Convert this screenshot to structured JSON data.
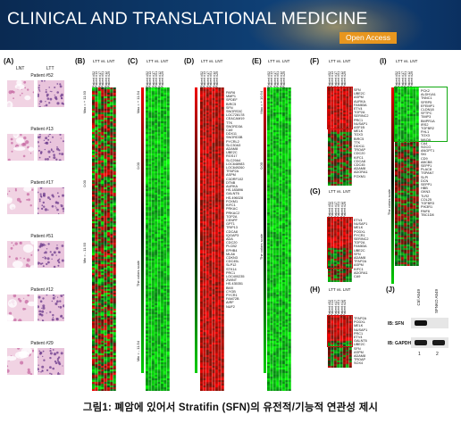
{
  "banner": {
    "journal_title": "CLINICAL AND TRANSLATIONAL MEDICINE",
    "access_badge": "Open Access",
    "colors": {
      "background": "#0d3a6c",
      "badge": "#e8961e"
    }
  },
  "panels": {
    "A": {
      "label": "(A)",
      "col_labels": [
        "LNT",
        "LTT"
      ],
      "patients": [
        "Patient #52",
        "Patient #13",
        "Patient #17",
        "Patient #51",
        "Patient #12",
        "Patient #29"
      ]
    },
    "B": {
      "label": "(B)",
      "header": "LTT vs. LNT",
      "scale": [
        "Max = + 11.93",
        "0.00",
        "Min = - 11.93"
      ]
    },
    "C": {
      "label": "(C)",
      "header": "LTT vs. LNT",
      "scale": [
        "Max = + 11.54",
        "0.00",
        "Min = - 11.54"
      ],
      "colorbar": "The colors scale"
    },
    "D": {
      "label": "(D)",
      "header": "LTT vs. LNT",
      "genes": [
        "PAFI6",
        "MMP1",
        "SPDEF",
        "BIRC5",
        "SFN",
        "SNORS3C",
        "LOC728178",
        "CEACAM19",
        "TTK",
        "SNORD3A",
        "CA9",
        "DDX11",
        "SNORD3B",
        "PYCRL2",
        "SLC30A3",
        "ADAM8",
        "UBE2C",
        "RGS17",
        "SLC29A4",
        "LOC648983",
        "LOC649260",
        "TFAP2A",
        "ASPM",
        "C3ORF102",
        "DTNB",
        "AURKA",
        "HS.183896",
        "GALNT6",
        "HS.496028",
        "FOXM1",
        "KIFC1",
        "PRKAC",
        "PRKAC2",
        "TOP2A",
        "CENPF",
        "GPT1",
        "TRIP13",
        "CDCA8",
        "IQGAP3",
        "ADA",
        "CDC20",
        "PLCB2",
        "EPHB4",
        "MLA6",
        "CDKN3",
        "CDC45L",
        "SLP12",
        "STK14",
        "PRC1",
        "LOC400235",
        "ZWINT",
        "HS.435351",
        "BMX",
        "CYGB",
        "PYCR1",
        "FAM72B",
        "AIRF",
        "NUF2"
      ]
    },
    "E": {
      "label": "(E)",
      "header": "LTT vs. LNT",
      "scale": [
        "Max = + 10.54",
        "0.00"
      ],
      "colorbar": "The colors scale"
    },
    "F": {
      "label": "(F)",
      "header": "LTT vs. LNT",
      "genes": [
        "SFN",
        "UBE2C",
        "ASPM",
        "AURKA",
        "FAM83A",
        "ETV4",
        "TOP2A",
        "SERINC2",
        "PRC1",
        "NUSAP1",
        "ASF1B",
        "MELK",
        "TOX3",
        "BIRC5",
        "TTK",
        "DDX11",
        "TROAP",
        "CDC20",
        "KIFC1",
        "CDCA8",
        "CDC45",
        "ADAM8",
        "ADORA1",
        "FOXM1"
      ]
    },
    "G": {
      "label": "(G)",
      "header": "LTT vs. LNT",
      "genes": [
        "ETV4",
        "NUSAP1",
        "MELK",
        "PODXL",
        "PYCR1",
        "SERINC2",
        "TOP2A",
        "FAM83A",
        "UBE2C",
        "SFN",
        "ADAM8",
        "TFAP2A",
        "ASPM",
        "KIFC1",
        "ADORA1",
        "CA9"
      ]
    },
    "H": {
      "label": "(H)",
      "header": "LTT vs. LNT",
      "genes": [
        "TFAP2A",
        "PODXL",
        "MELK",
        "NUSAP1",
        "PRC1",
        "ETV4",
        "GALNT6",
        "UBE2C",
        "SFN",
        "ASPM",
        "ADAM8",
        "TROAP",
        "SOX4"
      ]
    },
    "I": {
      "label": "(I)",
      "header": "LTT vs. LNT",
      "colorbar": "The colors scale",
      "genes": [
        "PCK2",
        "ALDH1A1",
        "TNNC1",
        "SFRP5",
        "EFEMP1",
        "CLDN18",
        "SFTPC",
        "TIMP3",
        "BMPR1A",
        "IRS2",
        "TGFBR2",
        "FHL1",
        "TOX3",
        "MAOA",
        "CA4",
        "SGCG",
        "ANGPT1",
        "SKI",
        "CD9",
        "ABCB8",
        "SEPP1",
        "PLAC8",
        "TSPAN7",
        "SLPI",
        "DCN",
        "SEPP1",
        "HBB",
        "GKN3",
        "TLR2",
        "COL25",
        "TGFBR3",
        "PIK3R1",
        "RNF8",
        "TBC1D8"
      ]
    },
    "J": {
      "label": "(J)",
      "lanes": [
        "Ctrl A549",
        "SFNKO A549"
      ],
      "rows": [
        "IB: SFN",
        "IB: GAPDH"
      ],
      "lane_numbers": [
        "1",
        "2"
      ]
    }
  },
  "patient_columns": [
    "Patient #52",
    "Patient #13",
    "Patient #17",
    "Patient #51",
    "Patient #12",
    "Patient #29"
  ],
  "caption": "그림1: 폐암에 있어서 Stratifin (SFN)의 유전적/기능적 연관성 제시"
}
